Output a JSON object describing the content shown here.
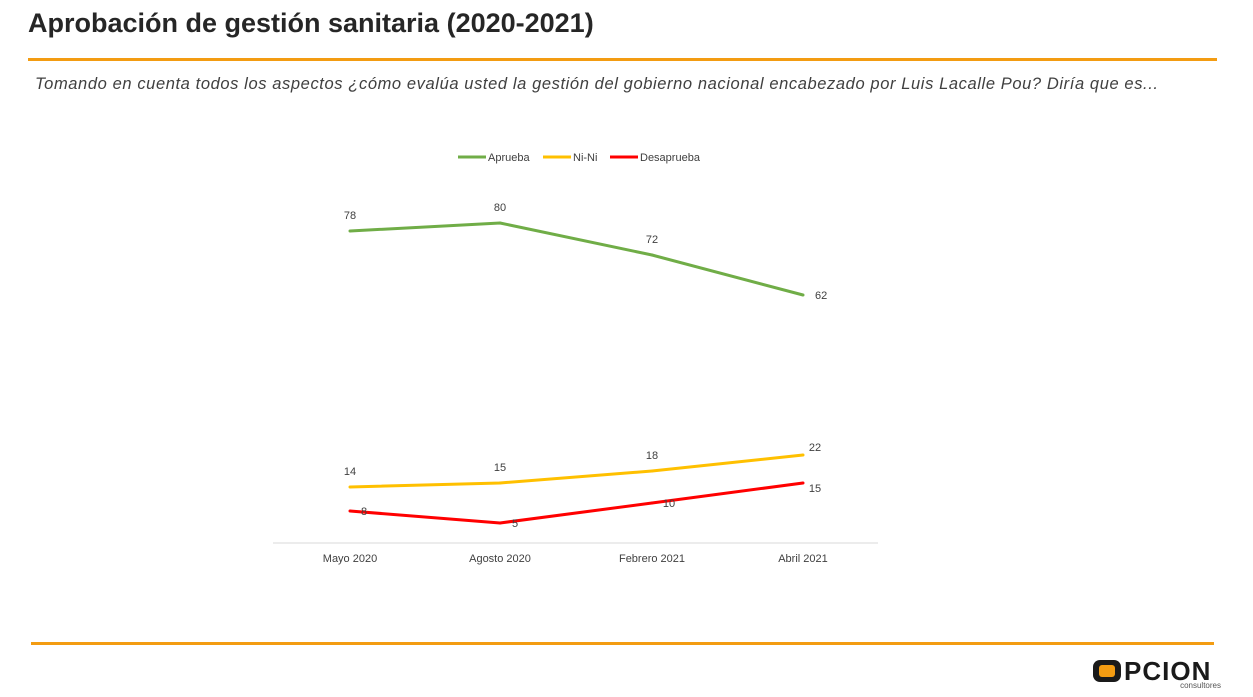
{
  "header": {
    "title": "Aprobación de gestión sanitaria (2020-2021)",
    "subtitle": "Tomando en cuenta todos los aspectos ¿cómo evalúa usted la gestión del gobierno nacional encabezado por Luis Lacalle Pou? Diría que es..."
  },
  "colors": {
    "accent": "#f39c12"
  },
  "logo": {
    "name": "PCION",
    "sub": "consultores"
  },
  "chart_data": {
    "type": "line",
    "categories": [
      "Mayo 2020",
      "Agosto 2020",
      "Febrero 2021",
      "Abril 2021"
    ],
    "series": [
      {
        "name": "Aprueba",
        "color": "#70ad47",
        "values": [
          78,
          80,
          72,
          62
        ]
      },
      {
        "name": "Ni-Ni",
        "color": "#ffc000",
        "values": [
          14,
          15,
          18,
          22
        ]
      },
      {
        "name": "Desaprueba",
        "color": "#ff0000",
        "values": [
          8,
          5,
          10,
          15
        ]
      }
    ],
    "ylim": [
      0,
      85
    ],
    "grid": false,
    "legend": "top",
    "xlabel": "",
    "ylabel": ""
  }
}
